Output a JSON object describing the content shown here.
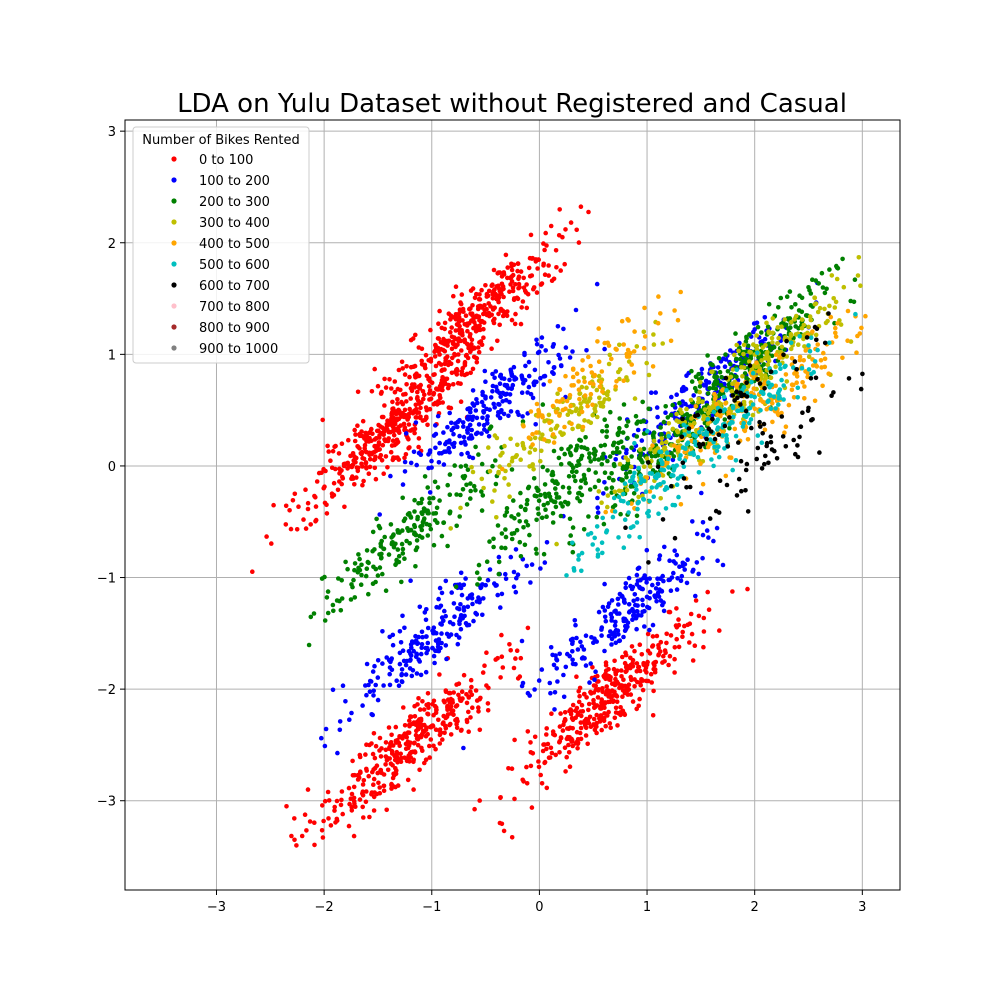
{
  "chart_data": {
    "type": "scatter",
    "title": "LDA on Yulu Dataset without Registered and Casual",
    "xlabel": "",
    "ylabel": "",
    "xlim": [
      -3.85,
      3.35
    ],
    "ylim": [
      -3.8,
      3.1
    ],
    "xticks": [
      -3,
      -2,
      -1,
      0,
      1,
      2,
      3
    ],
    "xtick_labels": [
      "−3",
      "−2",
      "−1",
      "0",
      "1",
      "2",
      "3"
    ],
    "yticks": [
      -3,
      -2,
      -1,
      0,
      1,
      2,
      3
    ],
    "ytick_labels": [
      "−3",
      "−2",
      "−1",
      "0",
      "1",
      "2",
      "3"
    ],
    "grid": true,
    "legend": {
      "title": "Number of Bikes Rented",
      "placement": "top-left"
    },
    "series": [
      {
        "name": "0 to 100",
        "color": "#ff0000",
        "count": 1500,
        "cluster_centers": [
          [
            -1.4,
            0.3
          ],
          [
            -0.6,
            1.3
          ],
          [
            0.6,
            -2.1
          ],
          [
            -1.2,
            -2.5
          ]
        ]
      },
      {
        "name": "100 to 200",
        "color": "#0000ff",
        "count": 900,
        "cluster_centers": [
          [
            0.8,
            -1.3
          ],
          [
            1.5,
            0.6
          ],
          [
            -0.5,
            0.5
          ],
          [
            -1.0,
            -1.5
          ]
        ]
      },
      {
        "name": "200 to 300",
        "color": "#008000",
        "count": 800,
        "cluster_centers": [
          [
            1.2,
            0.2
          ],
          [
            0.3,
            -0.1
          ],
          [
            2.0,
            1.0
          ],
          [
            -1.2,
            -0.6
          ]
        ]
      },
      {
        "name": "300 to 400",
        "color": "#bfbf00",
        "count": 450,
        "cluster_centers": [
          [
            1.4,
            0.3
          ],
          [
            0.2,
            0.4
          ],
          [
            2.2,
            1.0
          ]
        ]
      },
      {
        "name": "400 to 500",
        "color": "#ffa500",
        "count": 300,
        "cluster_centers": [
          [
            1.7,
            0.4
          ],
          [
            2.4,
            0.8
          ],
          [
            0.5,
            0.8
          ]
        ]
      },
      {
        "name": "500 to 600",
        "color": "#00bfbf",
        "count": 250,
        "cluster_centers": [
          [
            1.8,
            0.4
          ],
          [
            1.0,
            -0.2
          ]
        ]
      },
      {
        "name": "600 to 700",
        "color": "#000000",
        "count": 110,
        "cluster_centers": [
          [
            1.8,
            0.5
          ],
          [
            2.2,
            0.2
          ]
        ]
      },
      {
        "name": "700 to 800",
        "color": "#ffc0cb",
        "count": 0,
        "cluster_centers": []
      },
      {
        "name": "800 to 900",
        "color": "#a52a2a",
        "count": 0,
        "cluster_centers": []
      },
      {
        "name": "900 to 1000",
        "color": "#808080",
        "count": 0,
        "cluster_centers": []
      }
    ]
  }
}
